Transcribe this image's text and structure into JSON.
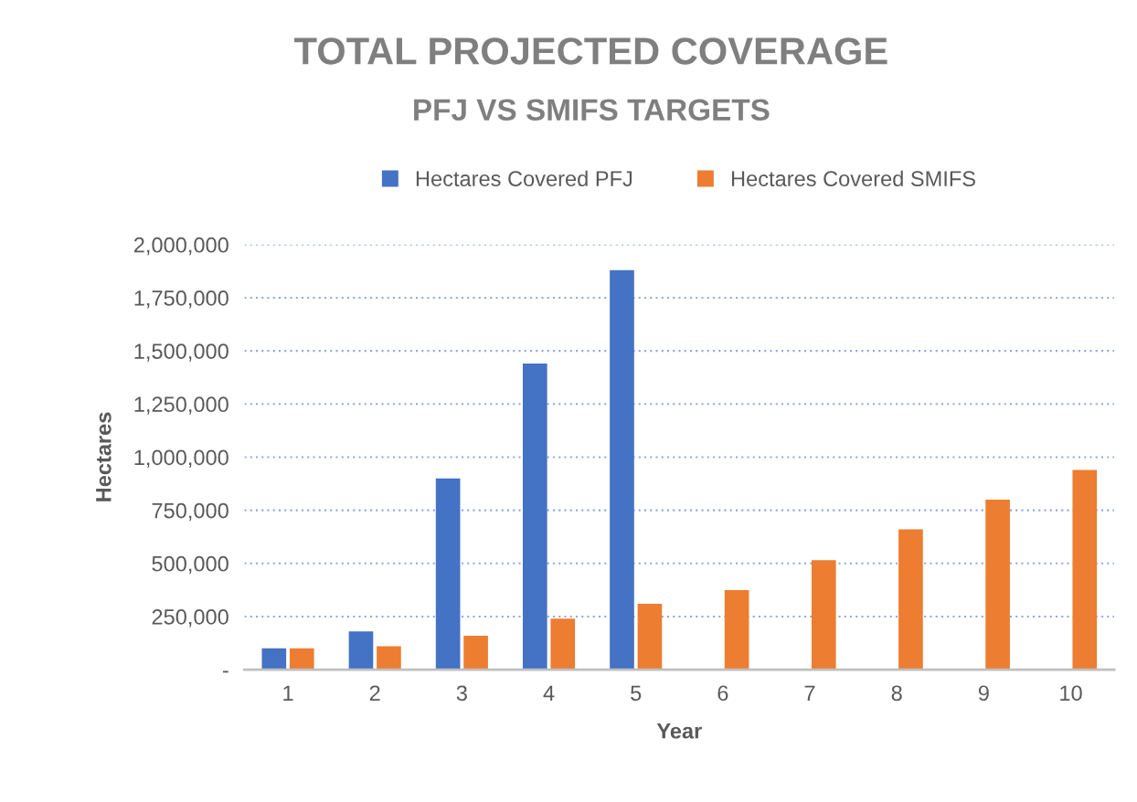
{
  "chart_data": {
    "type": "bar",
    "title": "TOTAL PROJECTED COVERAGE",
    "subtitle": "PFJ VS SMIFS TARGETS",
    "xlabel": "Year",
    "ylabel": "Hectares",
    "categories": [
      "1",
      "2",
      "3",
      "4",
      "5",
      "6",
      "7",
      "8",
      "9",
      "10"
    ],
    "series": [
      {
        "name": "Hectares Covered PFJ",
        "color": "#4472c4",
        "values": [
          100000,
          180000,
          900000,
          1440000,
          1880000,
          null,
          null,
          null,
          null,
          null
        ]
      },
      {
        "name": "Hectares Covered SMIFS",
        "color": "#ed7d31",
        "values": [
          100000,
          110000,
          160000,
          240000,
          310000,
          375000,
          515000,
          660000,
          800000,
          940000
        ]
      }
    ],
    "ylim": [
      0,
      2000000
    ],
    "yticks": [
      {
        "value": 0,
        "label": "-"
      },
      {
        "value": 250000,
        "label": "250,000"
      },
      {
        "value": 500000,
        "label": "500,000"
      },
      {
        "value": 750000,
        "label": "750,000"
      },
      {
        "value": 1000000,
        "label": "1,000,000"
      },
      {
        "value": 1250000,
        "label": "1,250,000"
      },
      {
        "value": 1500000,
        "label": "1,500,000"
      },
      {
        "value": 1750000,
        "label": "1,750,000"
      },
      {
        "value": 2000000,
        "label": "2,000,000"
      }
    ],
    "grid": "y",
    "legend": "top"
  }
}
